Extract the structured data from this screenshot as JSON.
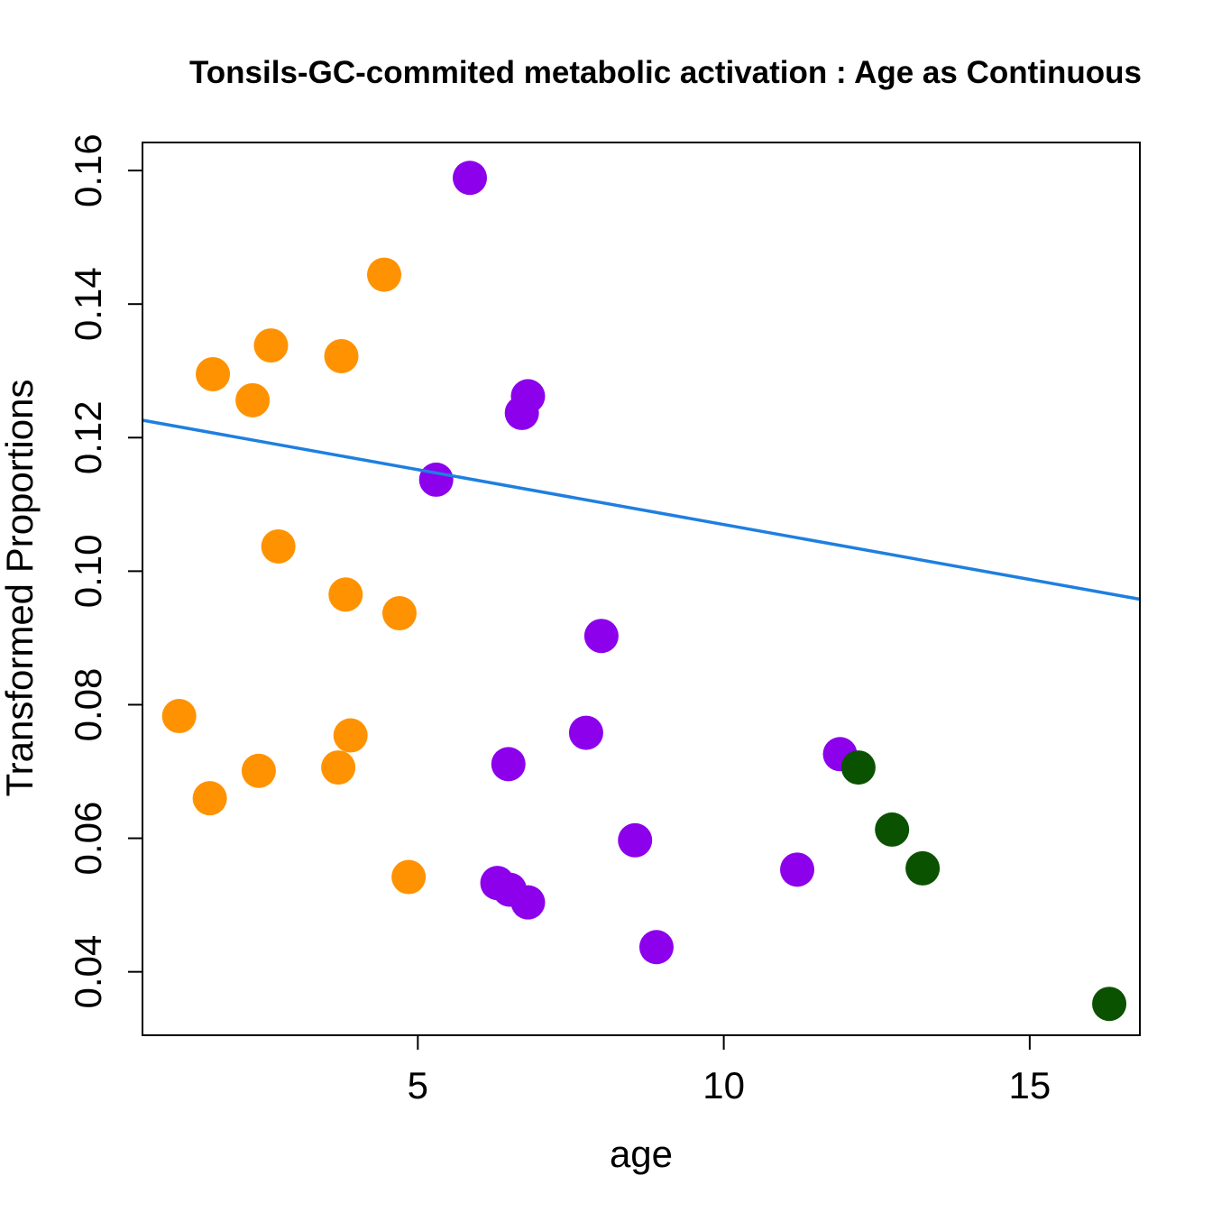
{
  "chart_data": {
    "type": "scatter",
    "title": "Tonsils-GC-commited metabolic activation : Age as Continuous",
    "xlabel": "age",
    "ylabel": "Transformed Proportions",
    "xlim": [
      0.5,
      16.8
    ],
    "ylim": [
      0.0305,
      0.1642
    ],
    "xticks": [
      5,
      10,
      15
    ],
    "yticks": [
      0.04,
      0.06,
      0.08,
      0.1,
      0.12,
      0.14,
      0.16
    ],
    "xtick_labels": [
      "5",
      "10",
      "15"
    ],
    "ytick_labels": [
      "0.04",
      "0.06",
      "0.08",
      "0.10",
      "0.12",
      "0.14",
      "0.16"
    ],
    "grid": false,
    "legend": "none",
    "series": [
      {
        "color": "#FF9200",
        "points": [
          {
            "x": 1.1,
            "y": 0.0783
          },
          {
            "x": 1.6,
            "y": 0.066
          },
          {
            "x": 1.65,
            "y": 0.1295
          },
          {
            "x": 2.3,
            "y": 0.1256
          },
          {
            "x": 2.4,
            "y": 0.0701
          },
          {
            "x": 2.6,
            "y": 0.1338
          },
          {
            "x": 2.72,
            "y": 0.1037
          },
          {
            "x": 3.7,
            "y": 0.0706
          },
          {
            "x": 3.75,
            "y": 0.1322
          },
          {
            "x": 3.82,
            "y": 0.0965
          },
          {
            "x": 3.9,
            "y": 0.0754
          },
          {
            "x": 4.45,
            "y": 0.1444
          },
          {
            "x": 4.7,
            "y": 0.0937
          },
          {
            "x": 4.85,
            "y": 0.0542
          }
        ]
      },
      {
        "color": "#8C00EB",
        "points": [
          {
            "x": 5.3,
            "y": 0.1137
          },
          {
            "x": 5.85,
            "y": 0.1589
          },
          {
            "x": 6.3,
            "y": 0.0533
          },
          {
            "x": 6.48,
            "y": 0.0711
          },
          {
            "x": 6.5,
            "y": 0.0523
          },
          {
            "x": 6.7,
            "y": 0.1237
          },
          {
            "x": 6.8,
            "y": 0.1262
          },
          {
            "x": 6.8,
            "y": 0.0504
          },
          {
            "x": 7.75,
            "y": 0.0758
          },
          {
            "x": 8.0,
            "y": 0.0903
          },
          {
            "x": 8.55,
            "y": 0.0597
          },
          {
            "x": 8.9,
            "y": 0.0437
          },
          {
            "x": 11.2,
            "y": 0.0553
          },
          {
            "x": 11.9,
            "y": 0.0726
          }
        ]
      },
      {
        "color": "#0B5200",
        "points": [
          {
            "x": 12.2,
            "y": 0.0706
          },
          {
            "x": 12.75,
            "y": 0.0613
          },
          {
            "x": 13.25,
            "y": 0.0555
          },
          {
            "x": 16.3,
            "y": 0.0352
          }
        ]
      }
    ],
    "trend_line": {
      "color": "#1E7FE0",
      "start": {
        "x": 0.5,
        "y": 0.1226
      },
      "end": {
        "x": 16.8,
        "y": 0.0958
      }
    }
  }
}
